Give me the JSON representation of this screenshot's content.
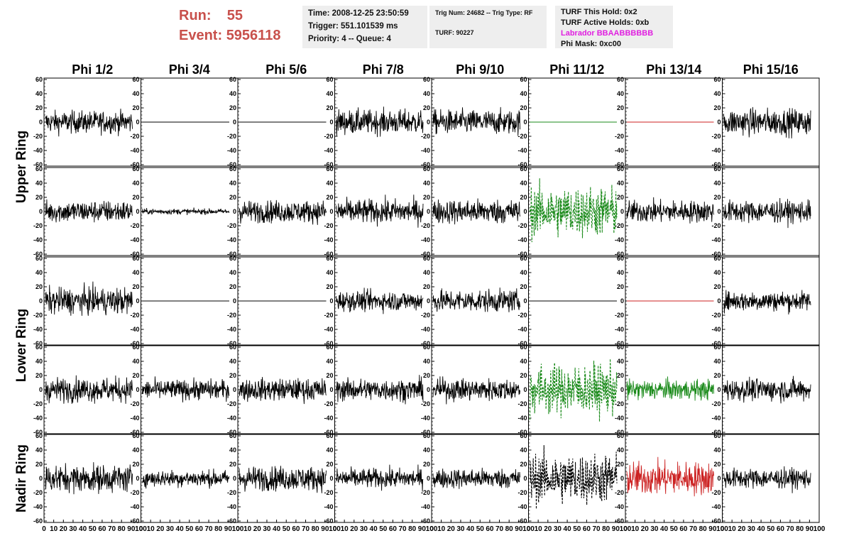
{
  "header": {
    "run_label": "Run:",
    "run_value": "55",
    "event_label": "Event:",
    "event_value": "5956118",
    "time": "Time: 2008-12-25 23:50:59",
    "trigger": "Trigger: 551.101539 ms",
    "priority": "Priority: 4 -- Queue: 4",
    "trig_num": "Trig Num: 24682 -- Trig Type: RF",
    "turf": "TURF: 90227",
    "turf_this_hold": "TURF This Hold: 0x2",
    "turf_active_holds": "TURF Active Holds: 0xb",
    "labrador": "Labrador BBAABBBBBB",
    "phi_mask": "Phi Mask: 0xc00"
  },
  "colors": {
    "run_text": "#c8504b",
    "labrador_text": "#e020e0",
    "trace_default": "#000000",
    "trace_green": "#1a8a1a",
    "trace_red": "#cc2222",
    "info_bg": "#eeeeee"
  },
  "chart_data": {
    "type": "line",
    "description_grid": "5 rows x 8 columns of waveform panels",
    "columns": [
      "Phi 1/2",
      "Phi 3/4",
      "Phi 5/6",
      "Phi 7/8",
      "Phi 9/10",
      "Phi 11/12",
      "Phi 13/14",
      "Phi 15/16"
    ],
    "rings": [
      {
        "label": "Upper Ring",
        "rows": [
          0,
          1
        ]
      },
      {
        "label": "Lower Ring",
        "rows": [
          2,
          3
        ]
      },
      {
        "label": "Nadir Ring",
        "rows": [
          4
        ]
      }
    ],
    "ylim": [
      -60,
      60
    ],
    "yticks": [
      -60,
      -40,
      -20,
      0,
      20,
      40,
      60
    ],
    "xlim": [
      0,
      100
    ],
    "xticks": [
      0,
      10,
      20,
      30,
      40,
      50,
      60,
      70,
      80,
      90,
      100
    ],
    "panels": [
      [
        {
          "style": "noise",
          "amp": 20,
          "color": "trace_default",
          "dashed": false
        },
        {
          "style": "flat",
          "amp": 0,
          "color": "trace_default",
          "dashed": false
        },
        {
          "style": "flat",
          "amp": 0,
          "color": "trace_default",
          "dashed": false
        },
        {
          "style": "noise",
          "amp": 22,
          "color": "trace_default",
          "dashed": false
        },
        {
          "style": "noise",
          "amp": 22,
          "color": "trace_default",
          "dashed": false
        },
        {
          "style": "flat",
          "amp": 0,
          "color": "trace_green",
          "dashed": false
        },
        {
          "style": "flat",
          "amp": 0,
          "color": "trace_red",
          "dashed": false
        },
        {
          "style": "noise",
          "amp": 24,
          "color": "trace_default",
          "dashed": false
        }
      ],
      [
        {
          "style": "noise",
          "amp": 20,
          "color": "trace_default",
          "dashed": false
        },
        {
          "style": "noise",
          "amp": 5,
          "color": "trace_default",
          "dashed": false
        },
        {
          "style": "noise",
          "amp": 20,
          "color": "trace_default",
          "dashed": false
        },
        {
          "style": "noise",
          "amp": 22,
          "color": "trace_default",
          "dashed": false
        },
        {
          "style": "noise",
          "amp": 22,
          "color": "trace_default",
          "dashed": false
        },
        {
          "style": "noise",
          "amp": 45,
          "color": "trace_green",
          "dashed": true
        },
        {
          "style": "noise",
          "amp": 20,
          "color": "trace_default",
          "dashed": false
        },
        {
          "style": "noise",
          "amp": 20,
          "color": "trace_default",
          "dashed": false
        }
      ],
      [
        {
          "style": "noise",
          "amp": 24,
          "color": "trace_default",
          "dashed": false
        },
        {
          "style": "flat",
          "amp": 0,
          "color": "trace_default",
          "dashed": false
        },
        {
          "style": "flat",
          "amp": 0,
          "color": "trace_default",
          "dashed": false
        },
        {
          "style": "noise",
          "amp": 18,
          "color": "trace_default",
          "dashed": false
        },
        {
          "style": "noise",
          "amp": 20,
          "color": "trace_default",
          "dashed": false
        },
        {
          "style": "flat",
          "amp": 0,
          "color": "trace_default",
          "dashed": false
        },
        {
          "style": "flat",
          "amp": 0,
          "color": "trace_red",
          "dashed": false
        },
        {
          "style": "noise",
          "amp": 18,
          "color": "trace_default",
          "dashed": false
        }
      ],
      [
        {
          "style": "noise",
          "amp": 22,
          "color": "trace_default",
          "dashed": false
        },
        {
          "style": "noise",
          "amp": 18,
          "color": "trace_default",
          "dashed": false
        },
        {
          "style": "noise",
          "amp": 20,
          "color": "trace_default",
          "dashed": false
        },
        {
          "style": "noise",
          "amp": 20,
          "color": "trace_default",
          "dashed": false
        },
        {
          "style": "noise",
          "amp": 20,
          "color": "trace_default",
          "dashed": false
        },
        {
          "style": "noise",
          "amp": 45,
          "color": "trace_green",
          "dashed": true
        },
        {
          "style": "noise",
          "amp": 18,
          "color": "trace_green",
          "dashed": false
        },
        {
          "style": "noise",
          "amp": 20,
          "color": "trace_default",
          "dashed": false
        }
      ],
      [
        {
          "style": "noise",
          "amp": 25,
          "color": "trace_default",
          "dashed": false
        },
        {
          "style": "noise",
          "amp": 15,
          "color": "trace_default",
          "dashed": false
        },
        {
          "style": "noise",
          "amp": 22,
          "color": "trace_default",
          "dashed": false
        },
        {
          "style": "noise",
          "amp": 18,
          "color": "trace_default",
          "dashed": false
        },
        {
          "style": "noise",
          "amp": 18,
          "color": "trace_default",
          "dashed": false
        },
        {
          "style": "noise",
          "amp": 45,
          "color": "trace_default",
          "dashed": true
        },
        {
          "style": "noise",
          "amp": 30,
          "color": "trace_red",
          "dashed": false
        },
        {
          "style": "noise",
          "amp": 18,
          "color": "trace_default",
          "dashed": false
        }
      ]
    ]
  }
}
